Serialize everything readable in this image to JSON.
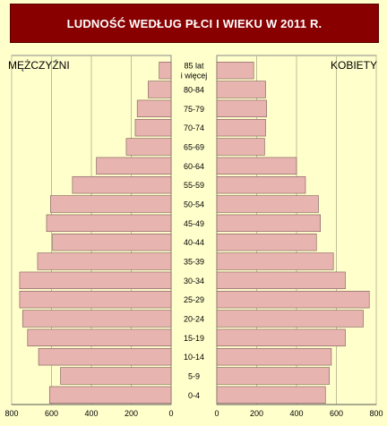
{
  "chart_data": {
    "type": "bar",
    "orientation": "horizontal",
    "title": "LUDNOŚĆ WEDŁUG PŁCI I WIEKU W 2011 R.",
    "categories": [
      "0-4",
      "5-9",
      "10-14",
      "15-19",
      "20-24",
      "25-29",
      "30-34",
      "35-39",
      "40-44",
      "45-49",
      "50-54",
      "55-59",
      "60-64",
      "65-69",
      "70-74",
      "75-79",
      "80-84",
      "85 lat\ni więcej"
    ],
    "series": [
      {
        "name": "MĘŻCZYŹNI",
        "values": [
          610,
          555,
          665,
          720,
          745,
          760,
          760,
          670,
          595,
          625,
          605,
          495,
          375,
          225,
          180,
          170,
          115,
          60
        ]
      },
      {
        "name": "KOBIETY",
        "values": [
          545,
          565,
          575,
          645,
          735,
          765,
          645,
          585,
          500,
          520,
          510,
          445,
          400,
          240,
          245,
          250,
          245,
          185
        ]
      }
    ],
    "xticks_left": [
      "800",
      "600",
      "400",
      "200",
      "0"
    ],
    "xticks_right": [
      "0",
      "200",
      "400",
      "600",
      "800"
    ],
    "xlim": [
      0,
      800
    ],
    "grid": true,
    "colors": {
      "bar": "#e8b4b0",
      "bar_edge": "#7a5b58",
      "title_bg": "#880000",
      "background": "#ffffcc",
      "grid": "#bfbf99"
    }
  }
}
